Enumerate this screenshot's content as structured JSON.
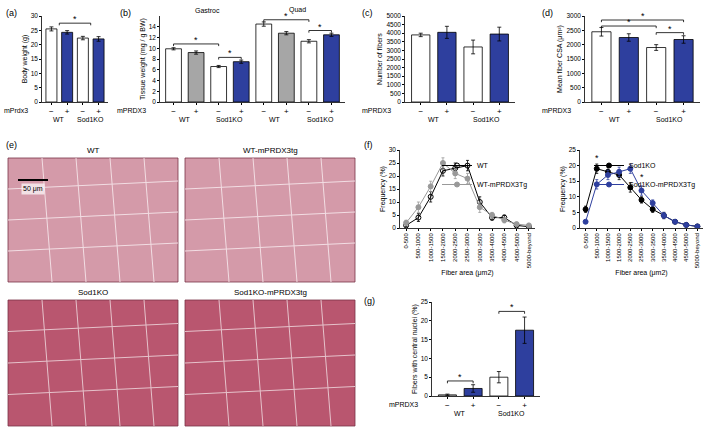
{
  "chart_data": [
    {
      "type": "bar",
      "title": "(a)",
      "y_label": "Body weight (g)",
      "row_label": "mPrdx3",
      "categories": [
        "−",
        "+",
        "−",
        "+"
      ],
      "groups": [
        "WT",
        "WT",
        "Sod1KO",
        "Sod1KO"
      ],
      "values": [
        25.5,
        24.3,
        22.3,
        22.0
      ],
      "errors": [
        0.7,
        0.6,
        0.6,
        0.8
      ],
      "colors": [
        "#ffffff",
        "#2e3f9e",
        "#ffffff",
        "#2e3f9e"
      ],
      "ylim": [
        0,
        30
      ],
      "yticks": [
        0,
        5,
        10,
        15,
        20,
        25,
        30
      ],
      "significance": [
        {
          "between": [
            [
              0,
              1
            ],
            [
              2,
              3
            ]
          ],
          "y": 27.5,
          "label": "*"
        }
      ]
    },
    {
      "type": "bar",
      "title": "(b)",
      "y_label": "Tissue weight (mg / g BW)",
      "row_label": "mPRDX3",
      "categories": [
        "−",
        "+",
        "−",
        "+",
        "−",
        "+",
        "−",
        "+"
      ],
      "groups": [
        "WT",
        "WT",
        "Sod1KO",
        "Sod1KO",
        "WT",
        "WT",
        "Sod1KO",
        "Sod1KO"
      ],
      "top_groups": [
        "Gastroc",
        "Gastroc",
        "Gastroc",
        "Gastroc",
        "Quad",
        "Quad",
        "Quad",
        "Quad"
      ],
      "values": [
        9.9,
        9.2,
        6.6,
        7.5,
        14.5,
        12.8,
        11.3,
        12.5
      ],
      "errors": [
        0.2,
        0.3,
        0.2,
        0.3,
        0.4,
        0.3,
        0.3,
        0.3
      ],
      "colors": [
        "#ffffff",
        "#a6a6a6",
        "#ffffff",
        "#2e3f9e",
        "#ffffff",
        "#a6a6a6",
        "#ffffff",
        "#2e3f9e"
      ],
      "ylim": [
        0,
        16
      ],
      "yticks": [
        0,
        2,
        4,
        6,
        8,
        10,
        12,
        14
      ],
      "significance": [
        {
          "between": [
            [
              0
            ],
            [
              2
            ]
          ],
          "y": 10.8,
          "label": "*"
        },
        {
          "between": [
            [
              2
            ],
            [
              3
            ]
          ],
          "y": 8.3,
          "label": "*"
        },
        {
          "between": [
            [
              4
            ],
            [
              6
            ]
          ],
          "y": 15.3,
          "label": "*"
        },
        {
          "between": [
            [
              6
            ],
            [
              7
            ]
          ],
          "y": 13.3,
          "label": "*"
        }
      ]
    },
    {
      "type": "bar",
      "title": "(c)",
      "y_label": "Number of fibers",
      "row_label": "mPRDX3",
      "categories": [
        "−",
        "+",
        "−",
        "+"
      ],
      "groups": [
        "WT",
        "WT",
        "Sod1KO",
        "Sod1KO"
      ],
      "values": [
        3900,
        4050,
        3200,
        3950
      ],
      "errors": [
        100,
        350,
        400,
        400
      ],
      "colors": [
        "#ffffff",
        "#2e3f9e",
        "#ffffff",
        "#2e3f9e"
      ],
      "ylim": [
        0,
        5000
      ],
      "yticks": [
        0,
        500,
        1000,
        1500,
        2000,
        2500,
        3000,
        3500,
        4000,
        4500,
        5000
      ]
    },
    {
      "type": "bar",
      "title": "(d)",
      "y_label": "Mean fiber CSA (μm²)",
      "row_label": "mPRDX3",
      "categories": [
        "−",
        "+",
        "−",
        "+"
      ],
      "groups": [
        "WT",
        "WT",
        "Sod1KO",
        "Sod1KO"
      ],
      "values": [
        2450,
        2250,
        1900,
        2180
      ],
      "errors": [
        150,
        130,
        100,
        130
      ],
      "colors": [
        "#ffffff",
        "#2e3f9e",
        "#ffffff",
        "#2e3f9e"
      ],
      "ylim": [
        0,
        3000
      ],
      "yticks": [
        0,
        500,
        1000,
        1500,
        2000,
        2500,
        3000
      ],
      "significance": [
        {
          "between": [
            [
              0
            ],
            [
              2
            ]
          ],
          "y": 2650,
          "label": "*"
        },
        {
          "between": [
            [
              2
            ],
            [
              3
            ]
          ],
          "y": 2420,
          "label": "*"
        },
        {
          "between": [
            [
              0
            ],
            [
              3
            ]
          ],
          "y": 2860,
          "label": "*"
        }
      ]
    },
    {
      "type": "image",
      "title": "(e)",
      "images": [
        "WT",
        "WT-mPRDX3tg",
        "Sod1KO",
        "Sod1KO-mPRDX3tg"
      ],
      "scale_bar": "50 μm"
    },
    {
      "type": "line",
      "title": "(f)",
      "y_label": "Frequency (%)",
      "x_label": "Fiber area (μm2)",
      "categories": [
        "0-500",
        "500-1000",
        "1000-1500",
        "1500-2000",
        "2000-2500",
        "2500-3000",
        "3000-3500",
        "3500-4000",
        "4000-4500",
        "4500-5000",
        "5000-beyond"
      ],
      "ylim": [
        0,
        30
      ],
      "yticks": [
        0,
        5,
        10,
        15,
        20,
        25,
        30
      ],
      "legend": "upper right",
      "series": [
        {
          "name": "WT",
          "color": "#000000",
          "marker": "circle-open",
          "values": [
            1,
            4,
            12,
            22,
            23,
            24,
            10,
            4,
            4,
            1,
            0.5
          ],
          "errors": [
            0.5,
            1.5,
            2,
            2,
            2,
            2,
            2,
            1,
            1,
            0.5,
            0.3
          ]
        },
        {
          "name": "WT-mPRDX3Tg",
          "color": "#999999",
          "marker": "circle",
          "values": [
            2,
            8,
            16,
            25,
            21,
            19,
            8,
            5,
            3,
            1.5,
            1
          ],
          "errors": [
            1,
            2,
            2,
            2,
            2,
            2,
            2,
            1,
            1,
            0.5,
            0.5
          ]
        }
      ]
    },
    {
      "type": "line",
      "y_label": "Frequency (%)",
      "x_label": "Fiber area (μm2)",
      "categories": [
        "0-500",
        "500-1000",
        "1000-1500",
        "1500-2000",
        "2000-2500",
        "2500-3000",
        "3000-3500",
        "3500-4000",
        "4000-4500",
        "4500-5000",
        "5000-beyond"
      ],
      "ylim": [
        0,
        25
      ],
      "yticks": [
        0,
        5,
        10,
        15,
        20,
        25
      ],
      "legend": "upper right",
      "series": [
        {
          "name": "Sod1KO",
          "color": "#000000",
          "marker": "circle",
          "values": [
            6,
            19,
            18,
            17,
            13,
            9,
            6,
            4,
            2,
            1,
            0.5
          ],
          "errors": [
            1,
            1.5,
            1.5,
            1.5,
            1.5,
            1,
            1,
            1,
            0.5,
            0.3,
            0.3
          ]
        },
        {
          "name": "Sod1KO-mPRDX3Tg",
          "color": "#2e3f9e",
          "marker": "circle",
          "values": [
            2,
            14,
            17,
            18,
            19,
            12,
            8,
            4,
            2,
            1,
            0.5
          ],
          "errors": [
            0.5,
            1.5,
            1.5,
            1.5,
            1.5,
            1.5,
            1,
            1,
            0.5,
            0.3,
            0.3
          ]
        }
      ],
      "significance_points": [
        {
          "index": 1,
          "y": 21,
          "label": "*"
        },
        {
          "index": 5,
          "y": 15,
          "label": "*"
        }
      ]
    },
    {
      "type": "bar",
      "title": "(g)",
      "y_label": "Fibers with central nuclei (%)",
      "row_label": "mPRDX3",
      "categories": [
        "−",
        "+",
        "−",
        "+"
      ],
      "groups": [
        "WT",
        "WT",
        "Sod1KO",
        "Sod1KO"
      ],
      "values": [
        0.3,
        2.0,
        5.0,
        17.5
      ],
      "errors": [
        0.2,
        1.0,
        1.5,
        3.5
      ],
      "colors": [
        "#ffffff",
        "#2e3f9e",
        "#ffffff",
        "#2e3f9e"
      ],
      "ylim": [
        0,
        25
      ],
      "yticks": [
        0,
        5,
        10,
        15,
        20,
        25
      ],
      "significance": [
        {
          "between": [
            [
              0
            ],
            [
              1
            ]
          ],
          "y": 4.0,
          "label": "*"
        },
        {
          "between": [
            [
              2
            ],
            [
              3
            ]
          ],
          "y": 22.5,
          "label": "*"
        }
      ]
    }
  ]
}
